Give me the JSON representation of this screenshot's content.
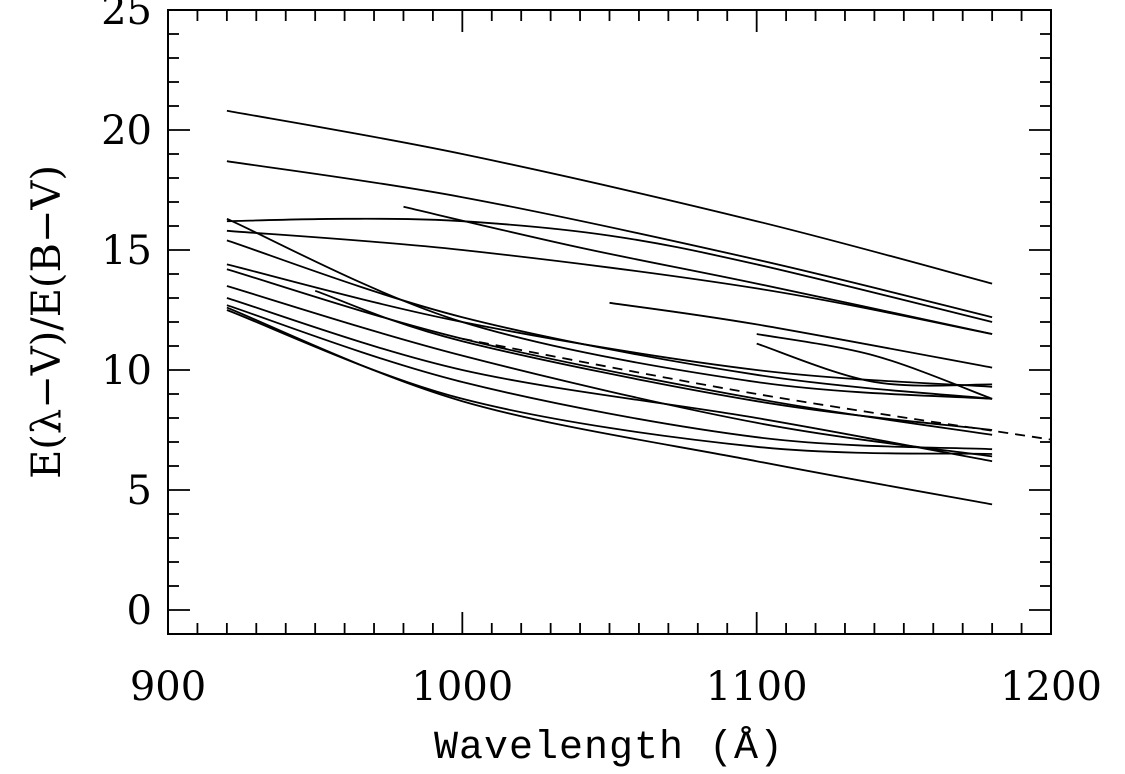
{
  "chart_data": {
    "type": "line",
    "title": "",
    "xlabel": "Wavelength (Å)",
    "ylabel": "E(λ−V)/E(B−V)",
    "xlim": [
      900,
      1200
    ],
    "ylim": [
      -1,
      25
    ],
    "x_ticks": [
      900,
      1000,
      1100,
      1200
    ],
    "y_ticks": [
      0,
      5,
      10,
      15,
      20,
      25
    ],
    "x_minor_step": 10,
    "y_minor_step": 1,
    "grid": false,
    "legend": "none",
    "series": [
      {
        "style": "solid",
        "x": [
          920,
          1000,
          1100,
          1180
        ],
        "y": [
          20.8,
          19.0,
          16.2,
          13.6
        ]
      },
      {
        "style": "solid",
        "x": [
          920,
          1000,
          1100,
          1180
        ],
        "y": [
          18.7,
          17.2,
          14.6,
          12.2
        ]
      },
      {
        "style": "solid",
        "x": [
          920,
          960,
          1000,
          1050,
          1100,
          1180
        ],
        "y": [
          16.2,
          16.3,
          16.2,
          15.6,
          14.4,
          12.0
        ]
      },
      {
        "style": "solid",
        "x": [
          980,
          1040,
          1100,
          1180
        ],
        "y": [
          16.8,
          15.1,
          13.6,
          11.5
        ]
      },
      {
        "style": "solid",
        "x": [
          920,
          1000,
          1100,
          1180
        ],
        "y": [
          15.8,
          15.0,
          13.4,
          11.5
        ]
      },
      {
        "style": "solid",
        "x": [
          920,
          1000,
          1100,
          1180
        ],
        "y": [
          16.3,
          12.0,
          9.5,
          8.8
        ]
      },
      {
        "style": "solid",
        "x": [
          1050,
          1100,
          1180
        ],
        "y": [
          12.8,
          11.9,
          10.1
        ]
      },
      {
        "style": "solid",
        "x": [
          1100,
          1140,
          1180
        ],
        "y": [
          11.5,
          10.6,
          8.8
        ]
      },
      {
        "style": "solid",
        "x": [
          1100,
          1140,
          1180
        ],
        "y": [
          11.1,
          9.5,
          9.4
        ]
      },
      {
        "style": "solid",
        "x": [
          920,
          1000,
          1100,
          1180
        ],
        "y": [
          15.4,
          12.2,
          9.8,
          8.8
        ]
      },
      {
        "style": "solid",
        "x": [
          920,
          1000,
          1100,
          1180
        ],
        "y": [
          14.4,
          12.0,
          10.0,
          9.3
        ]
      },
      {
        "style": "solid",
        "x": [
          920,
          1000,
          1100,
          1180
        ],
        "y": [
          14.2,
          11.3,
          8.8,
          7.3
        ]
      },
      {
        "style": "solid",
        "x": [
          950,
          1000,
          1100,
          1180
        ],
        "y": [
          13.3,
          11.2,
          8.7,
          7.5
        ]
      },
      {
        "style": "dashed",
        "x": [
          1000,
          1100,
          1200
        ],
        "y": [
          11.3,
          9.0,
          7.1
        ]
      },
      {
        "style": "solid",
        "x": [
          920,
          1000,
          1100,
          1180
        ],
        "y": [
          13.5,
          10.6,
          7.8,
          6.4
        ]
      },
      {
        "style": "solid",
        "x": [
          920,
          1000,
          1100,
          1180
        ],
        "y": [
          13.0,
          10.0,
          8.0,
          6.2
        ]
      },
      {
        "style": "solid",
        "x": [
          920,
          1000,
          1100,
          1180
        ],
        "y": [
          12.7,
          9.5,
          7.2,
          6.7
        ]
      },
      {
        "style": "solid",
        "x": [
          920,
          1000,
          1100,
          1180
        ],
        "y": [
          12.5,
          8.8,
          6.8,
          6.5
        ]
      },
      {
        "style": "solid",
        "x": [
          920,
          1000,
          1100,
          1180
        ],
        "y": [
          12.6,
          8.7,
          6.2,
          4.4
        ]
      }
    ]
  }
}
